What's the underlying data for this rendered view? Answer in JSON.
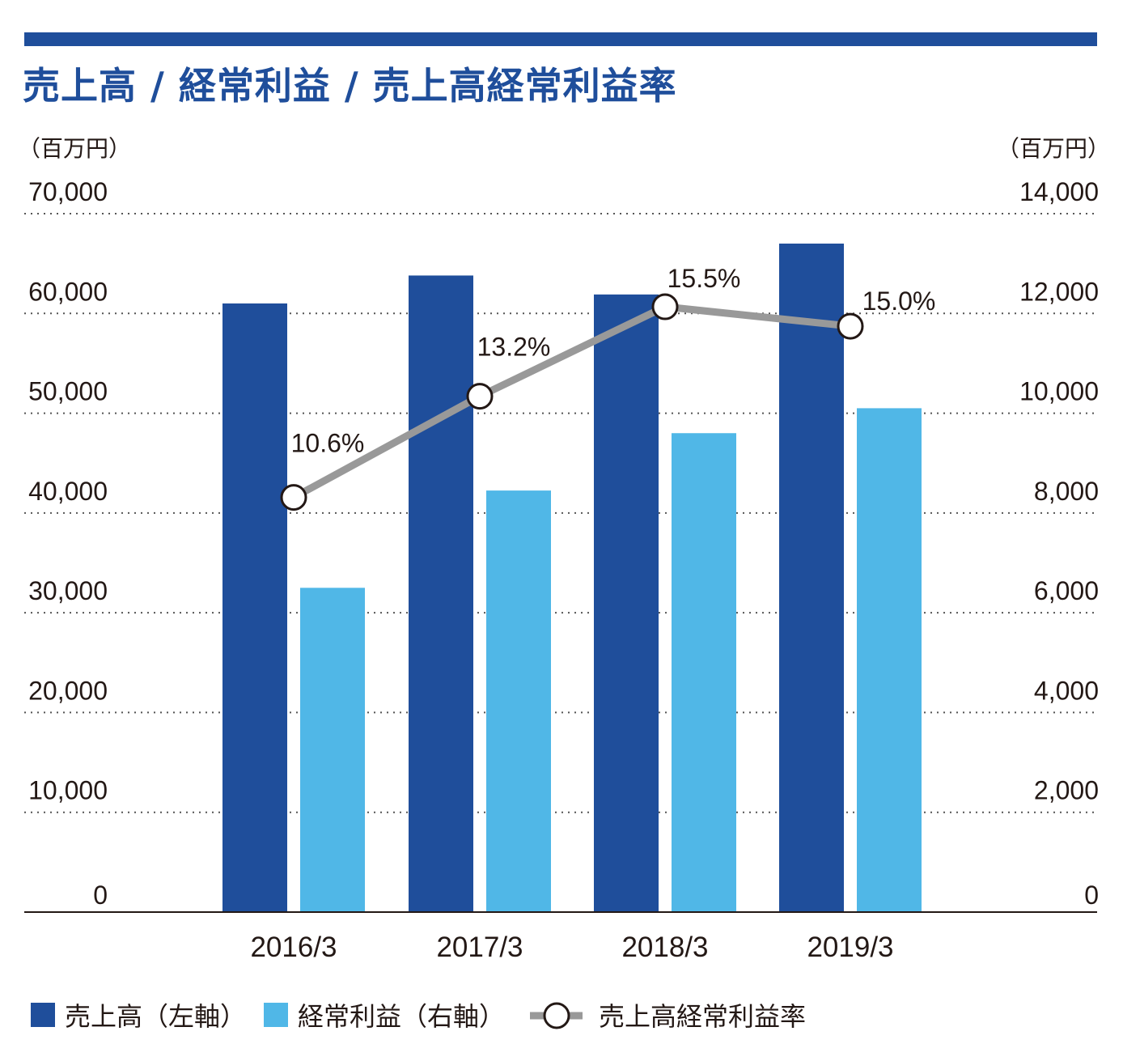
{
  "title": "売上高 / 経常利益 / 売上高経常利益率",
  "colors": {
    "accent": "#1f4e9b",
    "sales": "#1f4e9b",
    "profit": "#50b7e7",
    "rate": "#999999",
    "axis": "#231815"
  },
  "chart_data": {
    "type": "bar",
    "categories": [
      "2016/3",
      "2017/3",
      "2018/3",
      "2019/3"
    ],
    "y_left": {
      "unit": "（百万円）",
      "ylim": [
        0,
        70000
      ],
      "ticks": [
        "0",
        "10,000",
        "20,000",
        "30,000",
        "40,000",
        "50,000",
        "60,000",
        "70,000"
      ]
    },
    "y_right": {
      "unit": "（百万円）",
      "ylim": [
        0,
        14000
      ],
      "ticks": [
        "0",
        "2,000",
        "4,000",
        "6,000",
        "8,000",
        "10,000",
        "12,000",
        "14,000"
      ]
    },
    "series": [
      {
        "name": "売上高（左軸）",
        "type": "bar",
        "axis": "left",
        "color": "#1f4e9b",
        "values": [
          61000,
          63800,
          61900,
          67000
        ]
      },
      {
        "name": "経常利益（右軸）",
        "type": "bar",
        "axis": "right",
        "color": "#50b7e7",
        "values": [
          6500,
          8450,
          9600,
          10100
        ]
      },
      {
        "name": "売上高経常利益率",
        "type": "line",
        "axis": "right",
        "color": "#999999",
        "values": [
          10.6,
          13.2,
          15.5,
          15.0
        ],
        "labels": [
          "10.6%",
          "13.2%",
          "15.5%",
          "15.0%"
        ]
      }
    ],
    "grid": true,
    "legend_position": "bottom"
  }
}
